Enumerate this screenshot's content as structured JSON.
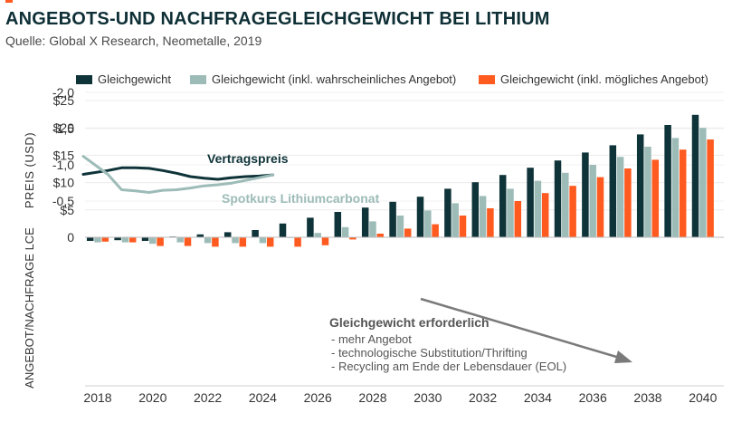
{
  "header": {
    "title": "ANGEBOTS-UND NACHFRAGEGLEICHGEWICHT BEI LITHIUM",
    "source": "Quelle: Global X Research, Neometalle, 2019"
  },
  "colors": {
    "accent": "#ff5a1f",
    "dark": "#0e3338",
    "light": "#9dbcb8",
    "orange": "#ff5a1f",
    "axis": "#cfcfcf"
  },
  "chart_data": {
    "type": "bar",
    "legend": [
      "Gleichgewicht",
      "Gleichgewicht (inkl. wahrscheinliches Angebot)",
      "Gleichgewicht (inkl. mögliches Angebot)"
    ],
    "legend_position": "top",
    "x_tick_labels": [
      "2018",
      "2020",
      "2022",
      "2024",
      "2026",
      "2028",
      "2030",
      "2032",
      "2034",
      "2036",
      "2038",
      "2040"
    ],
    "years": [
      2018,
      2019,
      2020,
      2021,
      2022,
      2023,
      2024,
      2025,
      2026,
      2027,
      2028,
      2029,
      2030,
      2031,
      2032,
      2033,
      2034,
      2035,
      2036,
      2037,
      2038,
      2039,
      2040
    ],
    "series": [
      {
        "name": "Gleichgewicht",
        "values": [
          0.05,
          0.04,
          0.05,
          -0.01,
          -0.04,
          -0.07,
          -0.1,
          -0.19,
          -0.27,
          -0.35,
          -0.41,
          -0.49,
          -0.56,
          -0.67,
          -0.76,
          -0.86,
          -0.96,
          -1.06,
          -1.17,
          -1.27,
          -1.42,
          -1.55,
          -1.69
        ]
      },
      {
        "name": "Gleichgewicht (inkl. wahrscheinliches Angebot)",
        "values": [
          0.07,
          0.07,
          0.09,
          0.07,
          0.08,
          0.08,
          0.08,
          0.0,
          -0.06,
          -0.14,
          -0.22,
          -0.3,
          -0.37,
          -0.47,
          -0.57,
          -0.67,
          -0.78,
          -0.89,
          -1.0,
          -1.11,
          -1.25,
          -1.37,
          -1.51
        ]
      },
      {
        "name": "Gleichgewicht (inkl. mögliches Angebot)",
        "values": [
          0.06,
          0.07,
          0.12,
          0.12,
          0.13,
          0.13,
          0.13,
          0.13,
          0.11,
          0.03,
          -0.05,
          -0.12,
          -0.18,
          -0.3,
          -0.4,
          -0.5,
          -0.61,
          -0.71,
          -0.83,
          -0.95,
          -1.07,
          -1.21,
          -1.35
        ]
      }
    ],
    "bottom_axis": {
      "label": "ANGEBOT/NACHFRAGE LCE",
      "ylim": [
        -2.0,
        0.0
      ],
      "tick_labels": [
        "0",
        "-0,5",
        "-1,0",
        "-1,5",
        "-2,0"
      ]
    },
    "top_axis": {
      "label": "PREIS (USD)",
      "ylim": [
        0,
        25
      ],
      "tick_labels": [
        "$25",
        "$20",
        "$15",
        "$10",
        "$5"
      ]
    },
    "price_lines": [
      {
        "name": "Vertragspreis",
        "x": [
          2018,
          2018.5,
          2019,
          2019.5,
          2020,
          2020.5,
          2021,
          2021.5,
          2022,
          2022.5,
          2023,
          2023.5,
          2024,
          2024.5
        ],
        "y": [
          11.5,
          12.2,
          12.7,
          12.7,
          12.6,
          12.2,
          11.7,
          11.1,
          10.8,
          10.6,
          10.9,
          11.1,
          11.2,
          11.4
        ]
      },
      {
        "name": "Spotkurs Lithiumcarbonat",
        "x": [
          2018,
          2018.5,
          2019,
          2019.5,
          2020,
          2020.5,
          2021,
          2021.5,
          2022,
          2022.5,
          2023,
          2023.5,
          2024,
          2024.5
        ],
        "y": [
          14.8,
          11.5,
          8.7,
          8.5,
          8.2,
          8.6,
          8.7,
          9.0,
          9.4,
          9.6,
          9.9,
          10.4,
          10.9,
          11.4
        ]
      }
    ],
    "annotation": {
      "heading": "Gleichgewicht erforderlich",
      "lines": [
        "- mehr Angebot",
        "- technologische Substitution/Thrifting",
        "- Recycling am Ende der Lebensdauer (EOL)"
      ]
    }
  }
}
